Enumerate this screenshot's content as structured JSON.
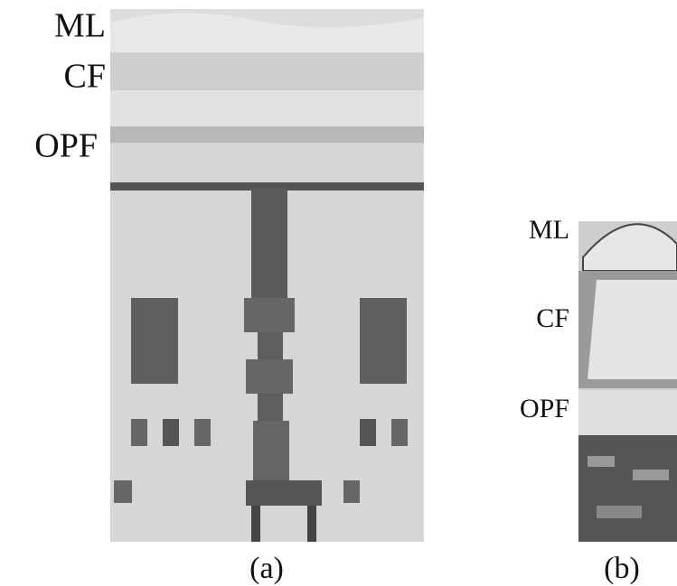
{
  "panel_a": {
    "labels": [
      "ML",
      "CF",
      "OPF"
    ],
    "caption": "(a)"
  },
  "panel_b": {
    "labels": [
      "ML",
      "CF",
      "OPF"
    ],
    "caption": "(b)"
  }
}
